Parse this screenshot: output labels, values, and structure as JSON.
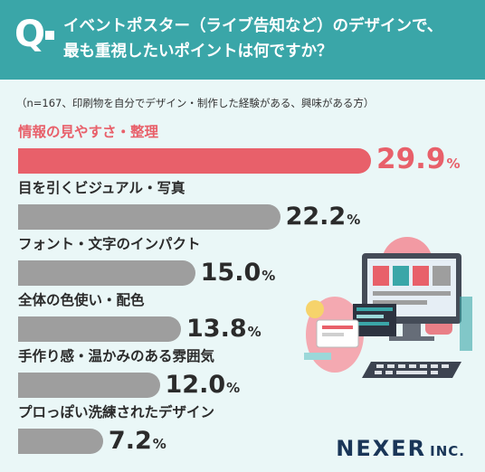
{
  "header": {
    "q_mark": "Q",
    "question_line1": "イベントポスター（ライブ告知など）のデザインで、",
    "question_line2": "最も重視したいポイントは何ですか？"
  },
  "note": "（n=167、印刷物を自分でデザイン・制作した経験がある、興味がある方）",
  "chart_data": {
    "type": "bar",
    "orientation": "horizontal",
    "categories": [
      "情報の見やすさ・整理",
      "目を引くビジュアル・写真",
      "フォント・文字のインパクト",
      "全体の色使い・配色",
      "手作り感・温かみのある雰囲気",
      "プロっぽい洗練されたデザイン"
    ],
    "values": [
      29.9,
      22.2,
      15.0,
      13.8,
      12.0,
      7.2
    ],
    "value_labels": [
      "29.9",
      "22.2",
      "15.0",
      "13.8",
      "12.0",
      "7.2"
    ],
    "unit": "%",
    "highlight_index": 0,
    "colors": {
      "highlight": "#e8606a",
      "default": "#9e9e9e",
      "header": "#3aa6a8"
    }
  },
  "brand": {
    "name": "NEXER",
    "suffix": "INC."
  },
  "illustration": "computer-desk-design-icon"
}
